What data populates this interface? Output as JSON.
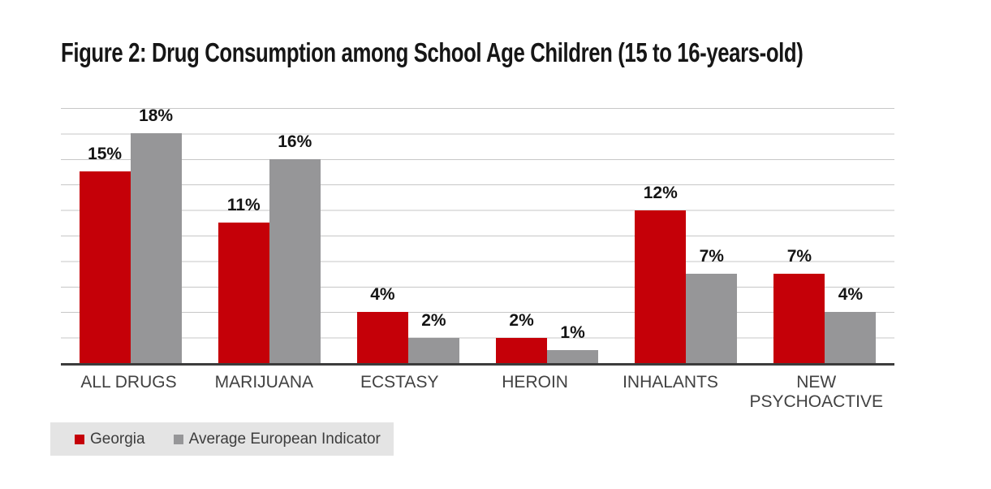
{
  "chart_data": {
    "type": "bar",
    "title": "Figure 2: Drug Consumption among School Age Children (15 to 16-years-old)",
    "categories": [
      "ALL DRUGS",
      "MARIJUANA",
      "ECSTASY",
      "HEROIN",
      "INHALANTS",
      "NEW PSYCHOACTIVE"
    ],
    "series": [
      {
        "name": "Georgia",
        "color": "#c50008",
        "values": [
          15,
          11,
          4,
          2,
          12,
          7
        ]
      },
      {
        "name": "Average European Indicator",
        "color": "#969698",
        "values": [
          18,
          16,
          2,
          1,
          7,
          4
        ]
      }
    ],
    "value_label_format": "{v}%",
    "value_labels": [
      [
        "15%",
        "11%",
        "4%",
        "2%",
        "12%",
        "7%"
      ],
      [
        "18%",
        "16%",
        "2%",
        "1%",
        "7%",
        "4%"
      ]
    ],
    "xlabel": "",
    "ylabel": "",
    "ylim": [
      0,
      20
    ],
    "gridline_step": 2,
    "grid": true,
    "y_axis_tick_labels_visible": false,
    "legend_position": "bottom-left",
    "baseline_color": "#3c3c3c",
    "gridline_color": "#c7c7c7",
    "legend_background": "#e4e4e4"
  }
}
